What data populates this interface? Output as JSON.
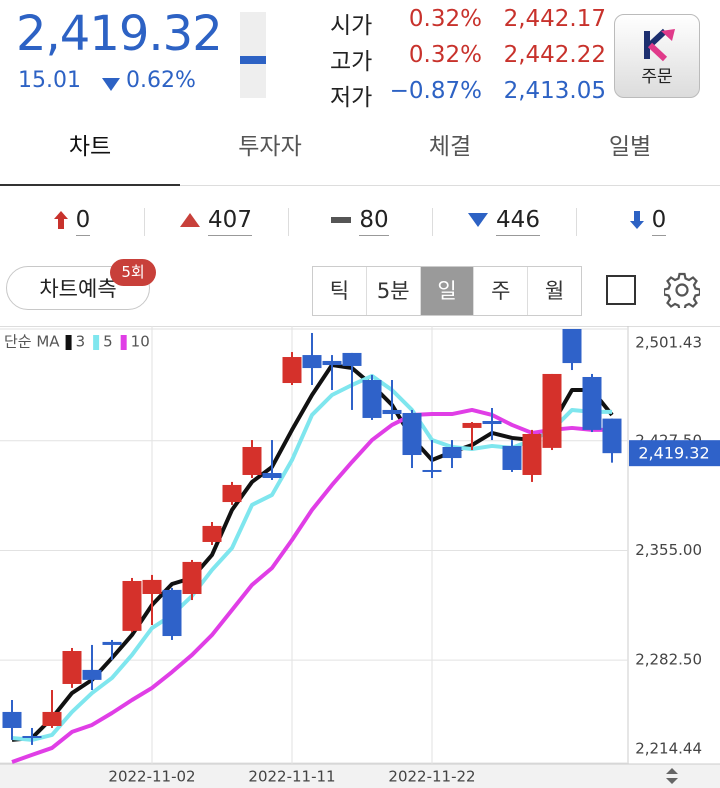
{
  "header": {
    "price": "2,419.32",
    "change": "15.01",
    "change_rate": "0.62%",
    "quotes": [
      {
        "label": "시가",
        "rate": "0.32%",
        "price": "2,442.17"
      },
      {
        "label": "고가",
        "rate": "0.32%",
        "price": "2,442.22"
      },
      {
        "label": "저가",
        "rate": "−0.87%",
        "price": "2,413.05"
      }
    ],
    "order_button": "주문"
  },
  "tabs": [
    "차트",
    "투자자",
    "체결",
    "일별"
  ],
  "breadth": [
    "0",
    "407",
    "80",
    "446",
    "0"
  ],
  "toolbar": {
    "forecast": "차트예측",
    "forecast_badge": "5회",
    "periods": [
      "틱",
      "5분",
      "일",
      "주",
      "월"
    ]
  },
  "chart_data": {
    "type": "candlestick",
    "legend_title": "단순 MA",
    "categories": [
      null,
      null,
      null,
      null,
      null,
      null,
      null,
      "2022-11-02",
      null,
      null,
      null,
      null,
      null,
      null,
      "2022-11-11",
      null,
      null,
      null,
      null,
      null,
      null,
      "2022-11-22",
      null,
      null,
      null,
      null,
      null,
      null,
      null,
      null,
      null
    ],
    "open": [
      2248.2,
      2232.3,
      2238.9,
      2266.7,
      2276.0,
      2294.5,
      2301.8,
      2326.2,
      2328.9,
      2326.2,
      2360.6,
      2387.0,
      2404.9,
      2406.2,
      2465.7,
      2484.2,
      2480.3,
      2485.6,
      2467.7,
      2447.9,
      2445.9,
      2408.2,
      2423.4,
      2436.0,
      2440.6,
      2424.1,
      2404.9,
      2422.8,
      2501.43,
      2469.7,
      2442.17
    ],
    "high": [
      2256.1,
      2237.6,
      2262.7,
      2290.5,
      2292.5,
      2295.8,
      2336.8,
      2338.8,
      2330.2,
      2348.7,
      2373.8,
      2400.3,
      2428.0,
      2428.0,
      2486.2,
      2498.8,
      2484.2,
      2485.6,
      2471.0,
      2467.7,
      2447.9,
      2428.0,
      2428.0,
      2439.9,
      2449.2,
      2428.0,
      2434.7,
      2471.7,
      2501.43,
      2471.7,
      2442.22
    ],
    "low": [
      2229.7,
      2226.4,
      2237.6,
      2264.1,
      2262.7,
      2282.6,
      2301.1,
      2305.7,
      2295.8,
      2322.2,
      2358.6,
      2385.1,
      2402.9,
      2401.6,
      2464.4,
      2464.4,
      2461.1,
      2447.9,
      2441.3,
      2441.3,
      2409.5,
      2402.9,
      2409.5,
      2421.4,
      2428.0,
      2406.9,
      2400.3,
      2421.4,
      2474.3,
      2433.3,
      2413.05
    ],
    "close": [
      2237.6,
      2231.0,
      2248.2,
      2288.5,
      2269.4,
      2292.5,
      2334.8,
      2335.5,
      2298.4,
      2347.4,
      2371.2,
      2398.3,
      2423.4,
      2402.9,
      2482.9,
      2475.6,
      2477.6,
      2477.0,
      2442.6,
      2445.2,
      2418.1,
      2406.9,
      2416.1,
      2439.3,
      2438.6,
      2408.2,
      2432.0,
      2471.7,
      2478.9,
      2434.7,
      2419.32
    ],
    "up_color": "#d5312b",
    "down_color": "#2f62c9",
    "series": [
      {
        "name": "3",
        "color": "#111111",
        "values": [
          2229.7,
          2231.0,
          2244.2,
          2260.7,
          2269.4,
          2283.9,
          2299.1,
          2318.9,
          2332.8,
          2336.8,
          2352.0,
          2381.8,
          2400.3,
          2410.2,
          2434.7,
          2457.8,
          2477.6,
          2475.6,
          2464.4,
          2451.2,
          2429.4,
          2414.8,
          2420.1,
          2424.7,
          2432.7,
          2429.4,
          2428.0,
          2438.0,
          2461.1,
          2461.1,
          2444.6
        ]
      },
      {
        "name": "5",
        "color": "#7fe6ee",
        "values": [
          2231.0,
          2229.7,
          2233.0,
          2248.2,
          2260.7,
          2270.7,
          2285.9,
          2303.7,
          2312.3,
          2324.9,
          2342.1,
          2356.6,
          2385.1,
          2391.7,
          2414.8,
          2444.6,
          2457.8,
          2464.4,
          2470.4,
          2461.1,
          2447.9,
          2428.0,
          2423.4,
          2422.1,
          2424.1,
          2422.8,
          2428.0,
          2434.7,
          2447.9,
          2446.6,
          2446.6
        ]
      },
      {
        "name": "10",
        "color": "#e03ee6",
        "values": [
          2215.1,
          2219.8,
          2224.4,
          2235.0,
          2239.6,
          2247.5,
          2256.1,
          2264.1,
          2274.6,
          2285.9,
          2299.1,
          2315.6,
          2332.2,
          2343.4,
          2361.9,
          2381.8,
          2398.3,
          2413.5,
          2428.0,
          2438.0,
          2444.6,
          2445.2,
          2445.2,
          2447.9,
          2444.6,
          2438.0,
          2432.7,
          2434.7,
          2436.0,
          2434.7,
          2434.7
        ]
      }
    ],
    "ylim": [
      2214.44,
      2501.43
    ],
    "yticks": [
      {
        "value": 2214.44,
        "label": "2,214.44"
      },
      {
        "value": 2282.5,
        "label": "2,282.50"
      },
      {
        "value": 2355,
        "label": "2,355.00"
      },
      {
        "value": 2427.5,
        "label": "2,427.50"
      },
      {
        "value": 2501.43,
        "label": "2,501.43"
      }
    ],
    "last_price": {
      "value": 2419.32,
      "label": "2,419.32"
    },
    "grid": true
  }
}
